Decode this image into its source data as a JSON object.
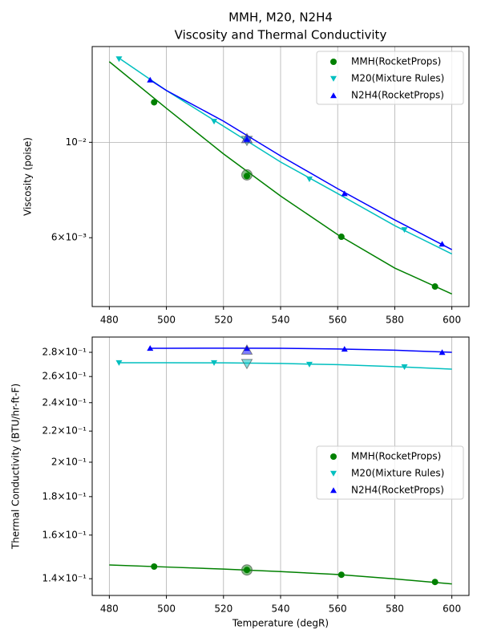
{
  "title": [
    "MMH, M20, N2H4",
    "Viscosity and Thermal Conductivity"
  ],
  "chart_data": [
    {
      "type": "line",
      "ylabel": "Viscosity (poise)",
      "log_y": true,
      "grid": true,
      "legend": "upper right",
      "xlim": [
        474,
        606
      ],
      "xticks": [
        480,
        500,
        520,
        540,
        560,
        580,
        600
      ],
      "ylim": [
        0.00415,
        0.0167
      ],
      "yticks": [
        {
          "value": 0.006,
          "label": "6×10⁻³"
        },
        {
          "value": 0.01,
          "label": "10⁻²"
        }
      ],
      "series": [
        {
          "name": "MMH(RocketProps)",
          "color": "#008000",
          "marker": "o",
          "x": [
            495.7,
            528.2,
            561.3,
            594.1
          ],
          "values": [
            0.01239,
            0.00835,
            0.00603,
            0.00462
          ],
          "curve_x": [
            480,
            500,
            520,
            540,
            560,
            580,
            600
          ],
          "curve_values": [
            0.0154,
            0.012,
            0.0094,
            0.0075,
            0.0061,
            0.0051,
            0.00444
          ],
          "highlight_x": 528.2,
          "highlight_value": 0.0084
        },
        {
          "name": "M20(Mixture Rules)",
          "color": "#00bfbf",
          "marker": "v",
          "x": [
            483.4,
            516.7,
            550.1,
            583.4
          ],
          "values": [
            0.01563,
            0.01118,
            0.00821,
            0.00626
          ],
          "curve_x": [
            484,
            500,
            520,
            540,
            560,
            580,
            600
          ],
          "curve_values": [
            0.0156,
            0.0132,
            0.0109,
            0.009,
            0.0076,
            0.0064,
            0.0055
          ],
          "highlight_x": 528.2,
          "highlight_value": 0.0101
        },
        {
          "name": "N2H4(RocketProps)",
          "color": "#0000ff",
          "marker": "^",
          "x": [
            494.3,
            528.2,
            562.4,
            596.6
          ],
          "values": [
            0.01397,
            0.01017,
            0.0076,
            0.0058
          ],
          "curve_x": [
            494,
            500,
            520,
            540,
            560,
            580,
            600
          ],
          "curve_values": [
            0.014,
            0.0132,
            0.0112,
            0.0093,
            0.0078,
            0.0066,
            0.00563
          ],
          "highlight_x": 528.2,
          "highlight_value": 0.0102
        }
      ]
    },
    {
      "type": "line",
      "ylabel": "Thermal Conductivity (BTU/hr-ft-F)",
      "xlabel": "Temperature (degR)",
      "log_y": true,
      "grid": true,
      "legend": "center right",
      "xlim": [
        474,
        606
      ],
      "xticks": [
        480,
        500,
        520,
        540,
        560,
        580,
        600
      ],
      "ylim": [
        0.133,
        0.2934
      ],
      "yticks": [
        {
          "value": 0.14,
          "label": "1.4×10⁻¹"
        },
        {
          "value": 0.16,
          "label": "1.6×10⁻¹"
        },
        {
          "value": 0.18,
          "label": "1.8×10⁻¹"
        },
        {
          "value": 0.2,
          "label": "2×10⁻¹"
        },
        {
          "value": 0.22,
          "label": "2.2×10⁻¹"
        },
        {
          "value": 0.24,
          "label": "2.4×10⁻¹"
        },
        {
          "value": 0.26,
          "label": "2.6×10⁻¹"
        },
        {
          "value": 0.28,
          "label": "2.8×10⁻¹"
        }
      ],
      "series": [
        {
          "name": "MMH(RocketProps)",
          "color": "#008000",
          "marker": "o",
          "x": [
            495.7,
            528.2,
            561.3,
            594.1
          ],
          "values": [
            0.1453,
            0.1438,
            0.1417,
            0.1386
          ],
          "curve_x": [
            480,
            500,
            520,
            540,
            560,
            580,
            600
          ],
          "curve_values": [
            0.146,
            0.1451,
            0.1442,
            0.1431,
            0.1418,
            0.1399,
            0.1378
          ],
          "highlight_x": 528.2,
          "highlight_value": 0.1438
        },
        {
          "name": "M20(Mixture Rules)",
          "color": "#00bfbf",
          "marker": "v",
          "x": [
            483.4,
            516.7,
            550.1,
            583.4
          ],
          "values": [
            0.2712,
            0.2712,
            0.2698,
            0.2678
          ],
          "curve_x": [
            484,
            500,
            520,
            540,
            560,
            580,
            600
          ],
          "curve_values": [
            0.2712,
            0.2712,
            0.2711,
            0.2706,
            0.2696,
            0.268,
            0.2659
          ],
          "highlight_x": 528.2,
          "highlight_value": 0.2705
        },
        {
          "name": "N2H4(RocketProps)",
          "color": "#0000ff",
          "marker": "^",
          "x": [
            494.3,
            528.2,
            562.4,
            596.6
          ],
          "values": [
            0.2835,
            0.2835,
            0.2828,
            0.28
          ],
          "curve_x": [
            494,
            500,
            520,
            540,
            560,
            580,
            600
          ],
          "curve_values": [
            0.2835,
            0.2835,
            0.2836,
            0.2835,
            0.2829,
            0.2818,
            0.28
          ],
          "highlight_x": 528.2,
          "highlight_value": 0.282
        }
      ]
    }
  ]
}
